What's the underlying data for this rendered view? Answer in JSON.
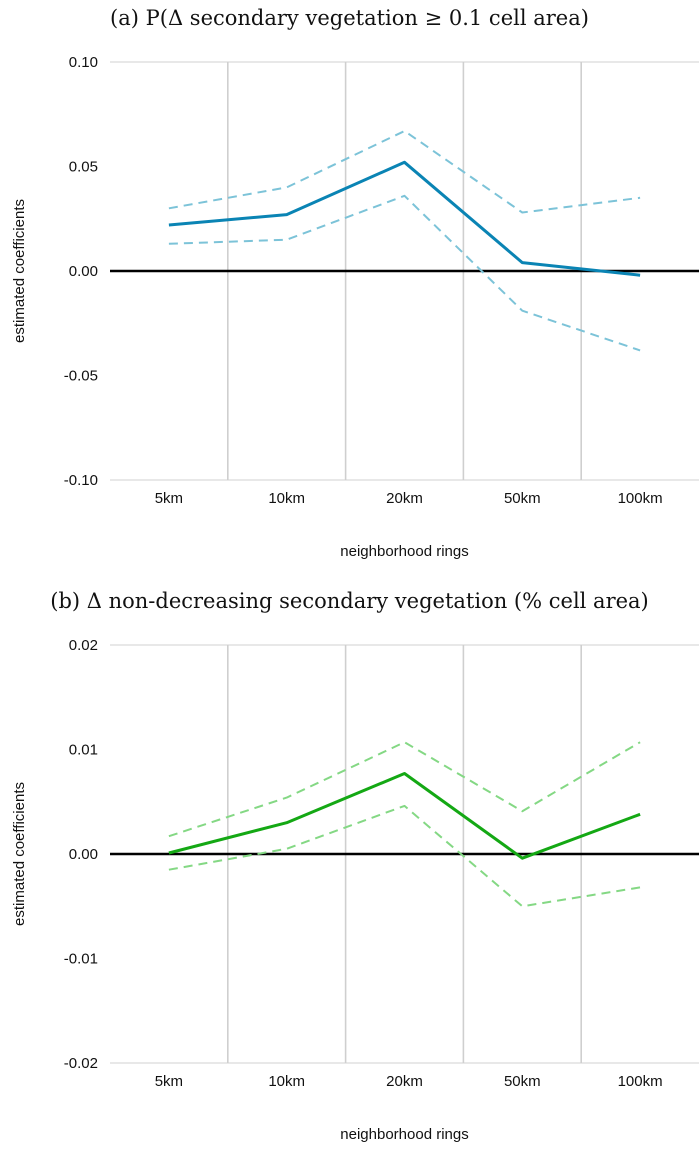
{
  "chart_data": [
    {
      "type": "line",
      "title": "(a) P(Δ secondary vegetation ≥ 0.1 cell area)",
      "xlabel": "neighborhood rings",
      "ylabel": "estimated coefficients",
      "categories": [
        "5km",
        "10km",
        "20km",
        "50km",
        "100km"
      ],
      "ylim": [
        -0.1,
        0.1
      ],
      "yticks": [
        "0.10",
        "0.05",
        "0.00",
        "-0.05",
        "-0.10"
      ],
      "ytick_values": [
        0.1,
        0.05,
        0.0,
        -0.05,
        -0.1
      ],
      "grid": "vertical",
      "series": [
        {
          "role": "estimate",
          "style": "solid",
          "color": "#0a84b4",
          "values": [
            0.022,
            0.027,
            0.052,
            0.004,
            -0.002
          ]
        },
        {
          "role": "upper",
          "style": "dashed",
          "color": "#7cc3d8",
          "values": [
            0.03,
            0.04,
            0.067,
            0.028,
            0.035
          ]
        },
        {
          "role": "lower",
          "style": "dashed",
          "color": "#7cc3d8",
          "values": [
            0.013,
            0.015,
            0.036,
            -0.019,
            -0.038
          ]
        }
      ]
    },
    {
      "type": "line",
      "title": "(b) Δ non-decreasing secondary vegetation (% cell area)",
      "xlabel": "neighborhood rings",
      "ylabel": "estimated coefficients",
      "categories": [
        "5km",
        "10km",
        "20km",
        "50km",
        "100km"
      ],
      "ylim": [
        -0.02,
        0.02
      ],
      "yticks": [
        "0.02",
        "0.01",
        "0.00",
        "-0.01",
        "-0.02"
      ],
      "ytick_values": [
        0.02,
        0.01,
        0.0,
        -0.01,
        -0.02
      ],
      "grid": "vertical",
      "series": [
        {
          "role": "estimate",
          "style": "solid",
          "color": "#14a814",
          "values": [
            0.0001,
            0.003,
            0.0077,
            -0.0004,
            0.0038
          ]
        },
        {
          "role": "upper",
          "style": "dashed",
          "color": "#84d884",
          "values": [
            0.0017,
            0.0054,
            0.0107,
            0.0041,
            0.0107
          ]
        },
        {
          "role": "lower",
          "style": "dashed",
          "color": "#84d884",
          "values": [
            -0.0015,
            0.0005,
            0.0046,
            -0.005,
            -0.0032
          ]
        }
      ]
    }
  ]
}
